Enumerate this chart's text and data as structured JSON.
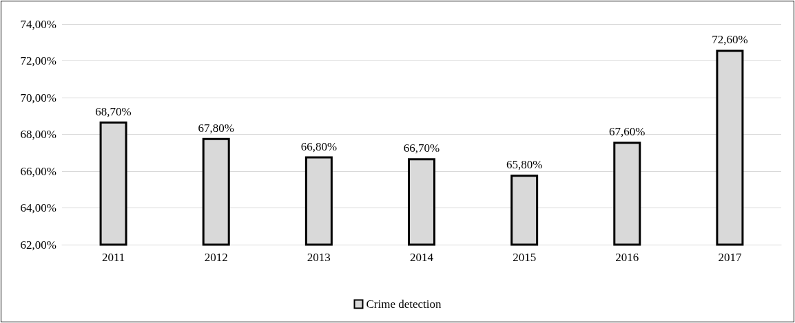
{
  "chart_data": {
    "type": "bar",
    "categories": [
      "2011",
      "2012",
      "2013",
      "2014",
      "2015",
      "2016",
      "2017"
    ],
    "series": [
      {
        "name": "Crime detection",
        "color": "#d9d9d9",
        "values": [
          68.7,
          67.8,
          66.8,
          66.7,
          65.8,
          67.6,
          72.6
        ],
        "value_labels": [
          "68,70%",
          "67,80%",
          "66,80%",
          "66,70%",
          "65,80%",
          "67,60%",
          "72,60%"
        ]
      }
    ],
    "ylim": [
      62,
      74
    ],
    "yticks": [
      {
        "value": 62,
        "label": "62,00%"
      },
      {
        "value": 64,
        "label": "64,00%"
      },
      {
        "value": 66,
        "label": "66,00%"
      },
      {
        "value": 68,
        "label": "68,00%"
      },
      {
        "value": 70,
        "label": "70,00%"
      },
      {
        "value": 72,
        "label": "72,00%"
      },
      {
        "value": 74,
        "label": "74,00%"
      }
    ],
    "grid": "y",
    "legend": "bottom"
  }
}
